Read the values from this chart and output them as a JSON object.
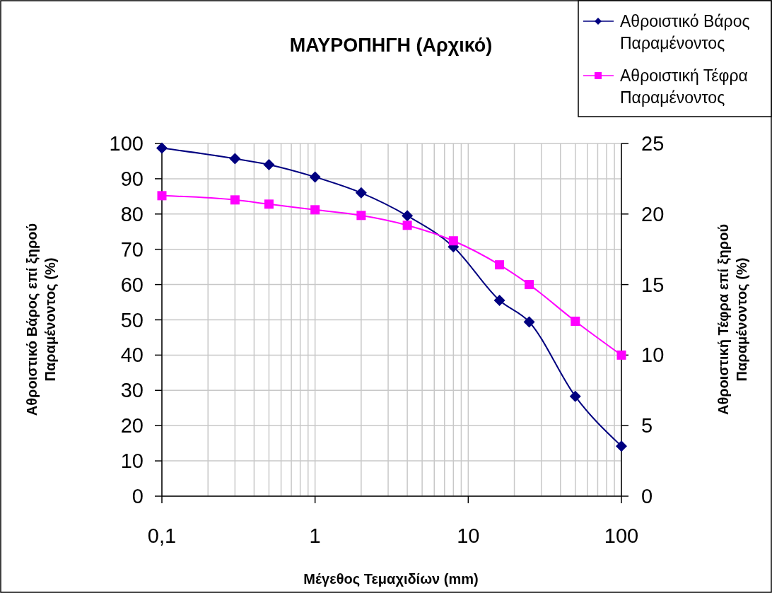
{
  "chart_data": {
    "type": "line",
    "title": "ΜΑΥΡΟΠΗΓΗ (Αρχικό)",
    "xlabel": "Μέγεθος Τεμαχιδίων (mm)",
    "ylabel": "Αθροιστικό Βάρος επί ξηρού\nΠαραμένοντος (%)",
    "y2label": "Αθροιστική Τέφρα επί ξηρού\nΠαραμένοντος (%)",
    "x": [
      0.1,
      0.3,
      0.5,
      1,
      2,
      4,
      8,
      16,
      25,
      50,
      100
    ],
    "series": [
      {
        "name": "Αθροιστικό Βάρος\nΠαραμένοντος",
        "color": "#000080",
        "marker": "diamond",
        "values": [
          98.7,
          95.7,
          94.0,
          90.5,
          86.0,
          79.5,
          70.7,
          55.5,
          49.4,
          28.3,
          14.2
        ]
      },
      {
        "name": "Αθροιστική Τέφρα\nΠαραμένοντος",
        "color": "#ff00ff",
        "marker": "square",
        "axis": "y2",
        "values": [
          21.3,
          21.0,
          20.7,
          20.3,
          19.9,
          19.2,
          18.1,
          16.4,
          15.0,
          12.4,
          10.0
        ]
      }
    ],
    "log": "x",
    "xlim": [
      0.1,
      100
    ],
    "xticks": [
      {
        "value": 0.1,
        "label": "0,1"
      },
      {
        "value": 0.2,
        "label": null
      },
      {
        "value": 0.3,
        "label": null
      },
      {
        "value": 0.4,
        "label": null
      },
      {
        "value": 0.5,
        "label": null
      },
      {
        "value": 0.6,
        "label": null
      },
      {
        "value": 0.7,
        "label": null
      },
      {
        "value": 0.8,
        "label": null
      },
      {
        "value": 0.9,
        "label": null
      },
      1,
      {
        "value": 2,
        "label": null
      },
      {
        "value": 3,
        "label": null
      },
      {
        "value": 4,
        "label": null
      },
      {
        "value": 5,
        "label": null
      },
      {
        "value": 6,
        "label": null
      },
      {
        "value": 7,
        "label": null
      },
      {
        "value": 8,
        "label": null
      },
      {
        "value": 9,
        "label": null
      },
      10,
      {
        "value": 20,
        "label": null
      },
      {
        "value": 30,
        "label": null
      },
      {
        "value": 40,
        "label": null
      },
      {
        "value": 50,
        "label": null
      },
      {
        "value": 60,
        "label": null
      },
      {
        "value": 70,
        "label": null
      },
      {
        "value": 80,
        "label": null
      },
      {
        "value": 90,
        "label": null
      },
      100
    ],
    "ylim": [
      0,
      100
    ],
    "yticks": [
      0,
      10,
      20,
      30,
      40,
      50,
      60,
      70,
      80,
      90,
      100
    ],
    "y2lim": [
      0,
      25
    ],
    "y2ticks": [
      0,
      5,
      10,
      15,
      20,
      25
    ],
    "grid": true,
    "legend": "top right",
    "line_style": "solid"
  }
}
